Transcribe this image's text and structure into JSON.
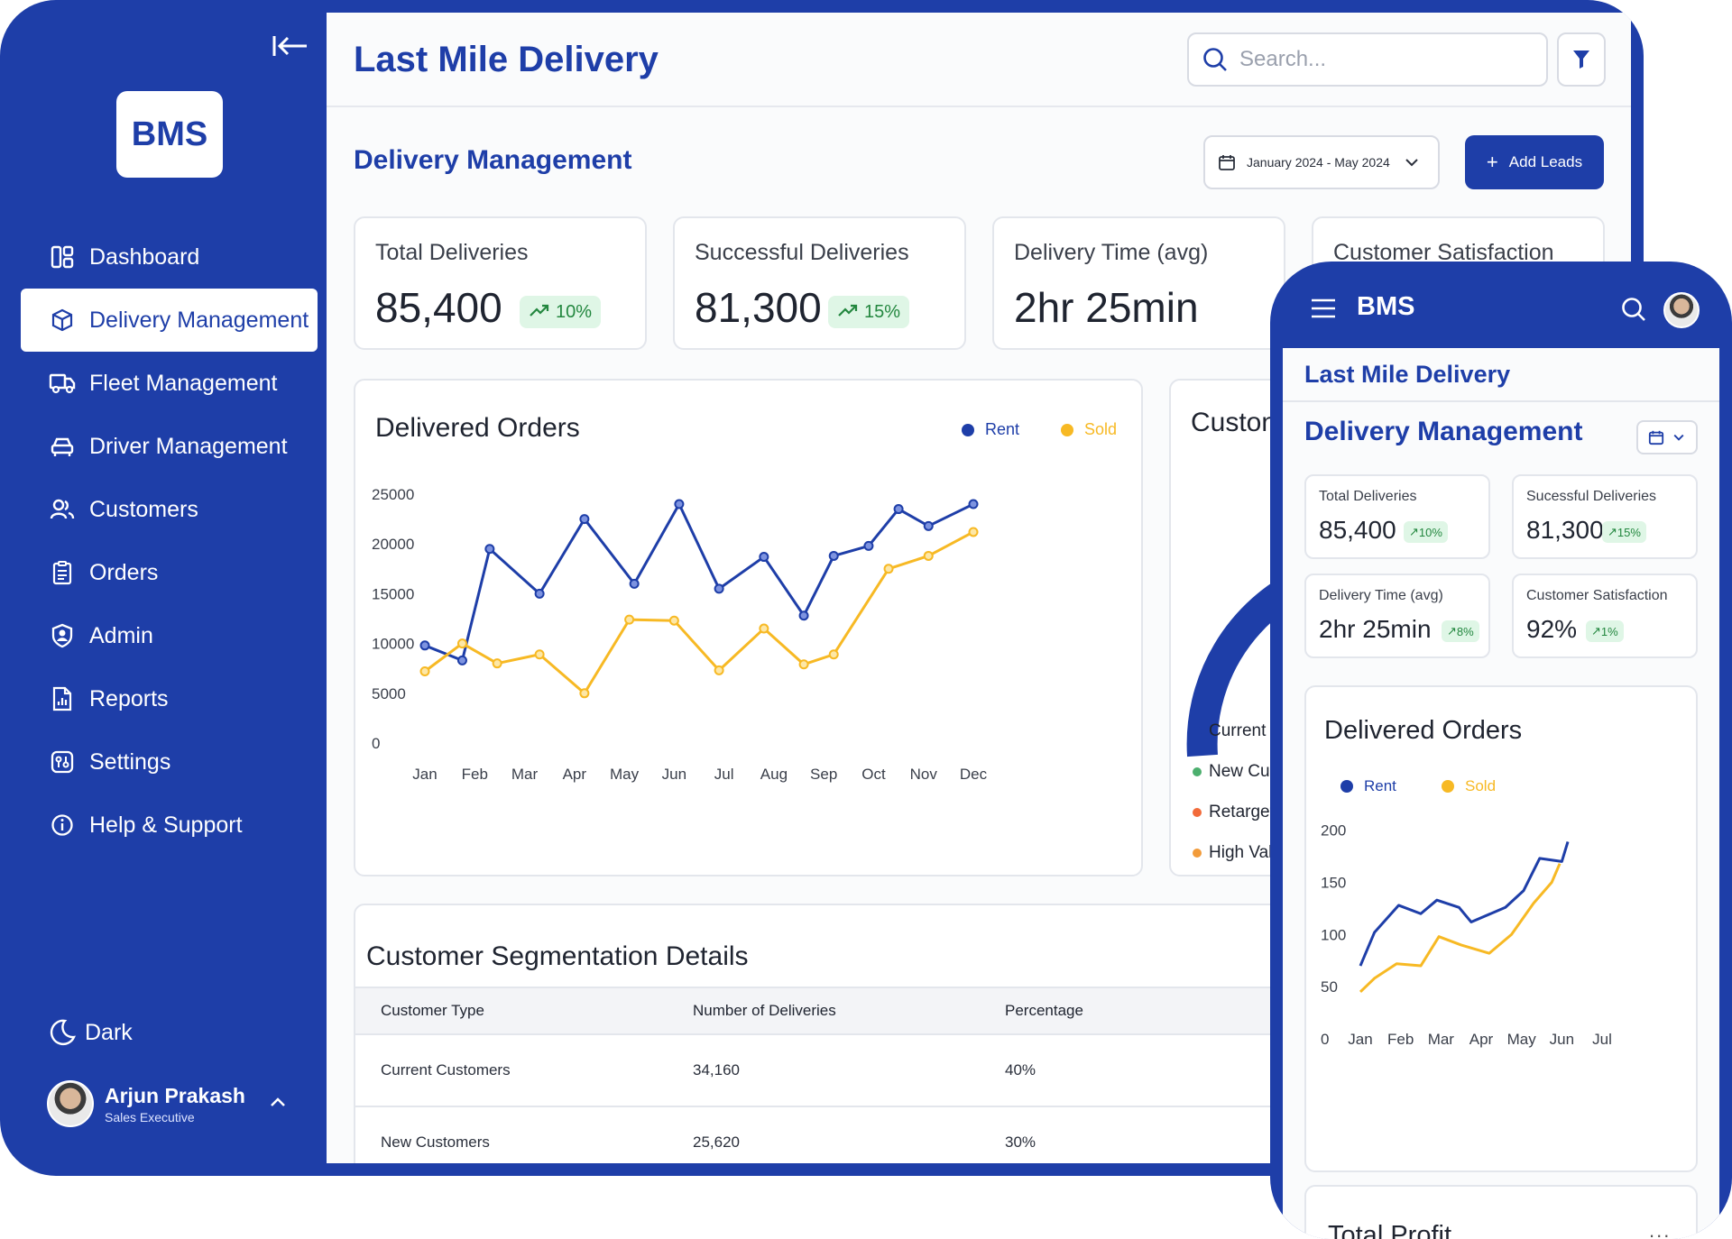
{
  "app": {
    "logo": "BMS",
    "title": "Last Mile Delivery",
    "search_placeholder": "Search..."
  },
  "sidebar": {
    "items": [
      {
        "label": "Dashboard",
        "icon": "dashboard-icon"
      },
      {
        "label": "Delivery Management",
        "icon": "box-icon",
        "active": true
      },
      {
        "label": "Fleet Management",
        "icon": "truck-icon"
      },
      {
        "label": "Driver Management",
        "icon": "car-icon"
      },
      {
        "label": "Customers",
        "icon": "users-icon"
      },
      {
        "label": "Orders",
        "icon": "clipboard-icon"
      },
      {
        "label": "Admin",
        "icon": "shield-user-icon"
      },
      {
        "label": "Reports",
        "icon": "report-icon"
      },
      {
        "label": "Settings",
        "icon": "settings-icon"
      },
      {
        "label": "Help & Support",
        "icon": "info-icon"
      }
    ],
    "dark_label": "Dark",
    "user": {
      "name": "Arjun Prakash",
      "role": "Sales Executive"
    }
  },
  "page": {
    "section_title": "Delivery Management",
    "date_range": "January 2024 - May 2024",
    "add_button": "Add Leads"
  },
  "kpis": [
    {
      "label": "Total Deliveries",
      "value": "85,400",
      "change": "10%"
    },
    {
      "label": "Successful Deliveries",
      "value": "81,300",
      "change": "15%"
    },
    {
      "label": "Delivery Time (avg)",
      "value": "2hr 25min"
    },
    {
      "label": "Customer Satisfaction"
    }
  ],
  "chart_data": [
    {
      "type": "line",
      "title": "Delivered Orders",
      "categories": [
        "Jan",
        "Feb",
        "Mar",
        "Apr",
        "May",
        "Jun",
        "Jul",
        "Aug",
        "Sep",
        "Oct",
        "Nov",
        "Dec"
      ],
      "x": [
        0,
        0.75,
        1,
        2,
        3,
        4,
        5,
        6,
        7,
        8,
        8.5,
        9,
        9.5,
        10,
        10.5,
        11
      ],
      "yticks": [
        0,
        5000,
        10000,
        15000,
        20000,
        25000
      ],
      "ylim": [
        0,
        25000
      ],
      "legend_position": "top-right",
      "series": [
        {
          "name": "Rent",
          "color": "#1e3ea8",
          "points": [
            [
              0,
              9800
            ],
            [
              0.75,
              8300
            ],
            [
              1.3,
              19500
            ],
            [
              2.3,
              15000
            ],
            [
              3.2,
              22500
            ],
            [
              4.2,
              16000
            ],
            [
              5.1,
              24000
            ],
            [
              5.9,
              15500
            ],
            [
              6.8,
              18700
            ],
            [
              7.6,
              12800
            ],
            [
              8.2,
              18800
            ],
            [
              8.9,
              19800
            ],
            [
              9.5,
              23500
            ],
            [
              10.1,
              21800
            ],
            [
              11,
              24000
            ]
          ]
        },
        {
          "name": "Sold",
          "color": "#f7b924",
          "points": [
            [
              0,
              7200
            ],
            [
              0.75,
              10000
            ],
            [
              1.45,
              8000
            ],
            [
              2.3,
              8900
            ],
            [
              3.2,
              5000
            ],
            [
              4.1,
              12400
            ],
            [
              5,
              12300
            ],
            [
              5.9,
              7300
            ],
            [
              6.8,
              11500
            ],
            [
              7.6,
              7900
            ],
            [
              8.2,
              8900
            ],
            [
              9.3,
              17500
            ],
            [
              10.1,
              18800
            ],
            [
              11,
              21200
            ]
          ]
        }
      ]
    },
    {
      "type": "line",
      "title": "Delivered Orders",
      "categories": [
        "Jan",
        "Feb",
        "Mar",
        "Apr",
        "May",
        "Jun",
        "Jul"
      ],
      "yticks": [
        0,
        50,
        100,
        150,
        200
      ],
      "ylim": [
        0,
        230
      ],
      "legend_position": "top-left",
      "series": [
        {
          "name": "Rent",
          "color": "#1e3ea8",
          "points": [
            [
              0,
              70
            ],
            [
              0.35,
              102
            ],
            [
              0.95,
              128
            ],
            [
              1.5,
              120
            ],
            [
              1.9,
              133
            ],
            [
              2.45,
              126
            ],
            [
              2.75,
              112
            ],
            [
              3.6,
              126
            ],
            [
              4.05,
              142
            ],
            [
              4.45,
              173
            ],
            [
              5,
              170
            ],
            [
              5.15,
              189
            ]
          ]
        },
        {
          "name": "Sold",
          "color": "#f7b924",
          "points": [
            [
              0,
              45
            ],
            [
              0.35,
              58
            ],
            [
              0.9,
              72
            ],
            [
              1.5,
              70
            ],
            [
              1.95,
              98
            ],
            [
              2.5,
              90
            ],
            [
              3.2,
              82
            ],
            [
              3.75,
              100
            ],
            [
              4.3,
              130
            ],
            [
              4.75,
              150
            ],
            [
              4.95,
              168
            ]
          ]
        }
      ]
    }
  ],
  "customers_card": {
    "title": "Custon",
    "legend": [
      {
        "label": "Current",
        "color": "#1e3ea8"
      },
      {
        "label": "New Cus",
        "color": "#4caf6e"
      },
      {
        "label": "Retarget",
        "color": "#f26b3a"
      },
      {
        "label": "High Val",
        "color": "#f29b3a"
      }
    ]
  },
  "segmentation": {
    "title": "Customer Segmentation Details",
    "columns": [
      "Customer Type",
      "Number of Deliveries",
      "Percentage"
    ],
    "rows": [
      [
        "Current Customers",
        "34,160",
        "40%"
      ],
      [
        "New Customers",
        "25,620",
        "30%"
      ]
    ]
  },
  "phone": {
    "logo": "BMS",
    "title": "Last Mile Delivery",
    "section_title": "Delivery Management",
    "kpis": [
      {
        "label": "Total Deliveries",
        "value": "85,400",
        "change": "10%"
      },
      {
        "label": "Sucessful Deliveries",
        "value": "81,300",
        "change": "15%"
      },
      {
        "label": "Delivery Time (avg)",
        "value": "2hr 25min",
        "change": "8%"
      },
      {
        "label": "Customer Satisfaction",
        "value": "92%",
        "change": "1%"
      }
    ],
    "profit_title": "Total Profit",
    "more": "..."
  },
  "colors": {
    "primary": "#1e3ea8",
    "accent": "#f7b924",
    "success": "#23873f"
  }
}
